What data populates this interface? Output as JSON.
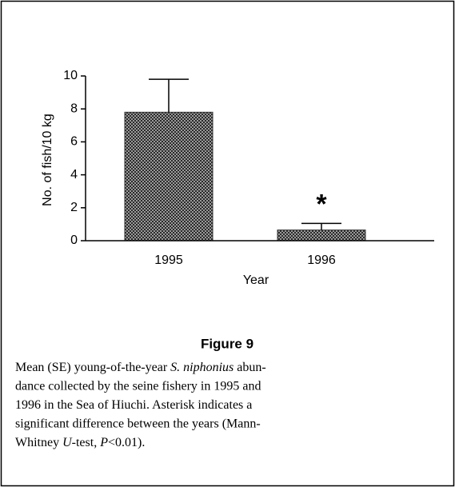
{
  "chart_data": {
    "type": "bar",
    "ylabel": "No. of fish/10 kg",
    "xlabel": "Year",
    "categories": [
      "1995",
      "1996"
    ],
    "values": [
      7.8,
      0.65
    ],
    "errors": [
      2.0,
      0.4
    ],
    "color": "#333333",
    "ylim": [
      0,
      10
    ],
    "yticks": [
      0,
      2,
      4,
      6,
      8,
      10
    ],
    "annotation": "*"
  },
  "figure": {
    "title": "Figure 9",
    "caption_lines": [
      [
        "Mean (SE) young-of-the-year ",
        {
          "text": "S. niphonius",
          "italic": true
        },
        " abun-"
      ],
      [
        "dance collected by the seine fishery in 1995 and"
      ],
      [
        "1996 in the Sea of Hiuchi. Asterisk indicates a"
      ],
      [
        "significant difference between the years (Mann-"
      ],
      [
        "Whitney ",
        {
          "text": "U",
          "italic": true
        },
        "-test, ",
        {
          "text": "P",
          "italic": true
        },
        "<0.01)."
      ]
    ]
  }
}
